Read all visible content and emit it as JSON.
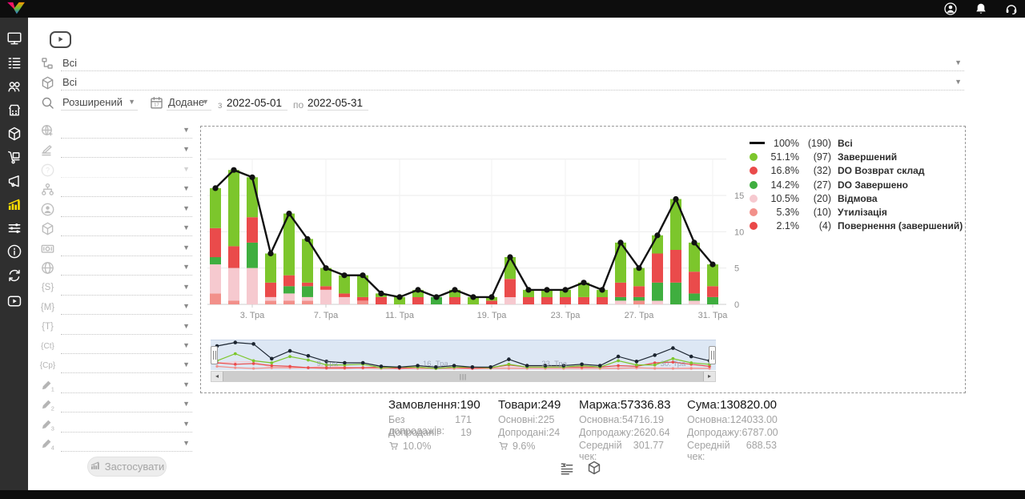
{
  "topbar": {
    "icons": [
      {
        "icon": "user",
        "name": "account"
      },
      {
        "icon": "bell",
        "name": "notifications"
      },
      {
        "icon": "headset",
        "name": "support"
      }
    ]
  },
  "sidebar": {
    "items": [
      {
        "icon": "monitor",
        "name": "dashboard"
      },
      {
        "icon": "list",
        "name": "orders"
      },
      {
        "icon": "users",
        "name": "customers"
      },
      {
        "icon": "store",
        "name": "warehouse"
      },
      {
        "icon": "cube",
        "name": "products"
      },
      {
        "icon": "trolley",
        "name": "shipping"
      },
      {
        "icon": "megaphone",
        "name": "marketing"
      },
      {
        "icon": "chartbars",
        "name": "statistics",
        "active": true
      },
      {
        "icon": "sliders",
        "name": "settings"
      },
      {
        "icon": "info",
        "name": "info"
      },
      {
        "icon": "sync",
        "name": "sync"
      },
      {
        "icon": "playbadge",
        "name": "video-help"
      }
    ],
    "active_color": "#ffe000",
    "icon_color": "#ffffff"
  },
  "filters": {
    "row1": {
      "icon": "tree",
      "value": "Всі"
    },
    "row2": {
      "icon": "cube",
      "value": "Всі"
    },
    "row3": {
      "search_mode": "Розширений",
      "date_field": "Додане",
      "from_label": "з",
      "date_from": "2022-05-01",
      "to_label": "по",
      "date_to": "2022-05-31"
    },
    "left_rows": [
      {
        "icon": "globepointer",
        "name": "region-filter"
      },
      {
        "icon": "layerspen",
        "name": "landing-filter"
      },
      {
        "icon": "question",
        "name": "unknown-filter",
        "disabled": true
      },
      {
        "icon": "sitemap",
        "name": "structure-filter"
      },
      {
        "icon": "personcircle",
        "name": "operator-filter"
      },
      {
        "icon": "cube",
        "name": "product-filter"
      },
      {
        "icon": "banknote",
        "name": "payment-filter"
      },
      {
        "icon": "globe",
        "name": "web-filter"
      },
      {
        "icon": "brackets",
        "text": "{S}",
        "name": "utm-source-filter"
      },
      {
        "icon": "brackets",
        "text": "{M}",
        "name": "utm-medium-filter"
      },
      {
        "icon": "brackets",
        "text": "{T}",
        "name": "utm-term-filter"
      },
      {
        "icon": "brackets",
        "text": "{Ct}",
        "name": "utm-content-filter"
      },
      {
        "icon": "brackets",
        "text": "{Cp}",
        "name": "utm-campaign-filter"
      },
      {
        "icon": "pencil",
        "num": "1",
        "name": "custom-field-1-filter"
      },
      {
        "icon": "pencil",
        "num": "2",
        "name": "custom-field-2-filter"
      },
      {
        "icon": "pencil",
        "num": "3",
        "name": "custom-field-3-filter"
      },
      {
        "icon": "pencil",
        "num": "4",
        "name": "custom-field-4-filter"
      }
    ],
    "apply_label": "Застосувати"
  },
  "chart_data": {
    "type": "bar",
    "subtype": "stacked-bars-with-total-line",
    "title": "",
    "xlabel": "",
    "ylabel": "",
    "ylim": [
      0,
      20
    ],
    "y_ticks": [
      0,
      5,
      10,
      15
    ],
    "grid": true,
    "legend_position": "top-right",
    "x_tick_labels": [
      {
        "bar_index": 2,
        "label": "3. Тра"
      },
      {
        "bar_index": 6,
        "label": "7. Тра"
      },
      {
        "bar_index": 10,
        "label": "11. Тра"
      },
      {
        "bar_index": 15,
        "label": "19. Тра"
      },
      {
        "bar_index": 19,
        "label": "23. Тра"
      },
      {
        "bar_index": 23,
        "label": "27. Тра"
      },
      {
        "bar_index": 27,
        "label": "31. Тра"
      }
    ],
    "legend": [
      {
        "swatch": "line",
        "pct": "100%",
        "count": "(190)",
        "label": "Всі",
        "color": "#111111"
      },
      {
        "swatch": "dot",
        "pct": "51.1%",
        "count": "(97)",
        "label": "Завершений",
        "color": "#7cc62c"
      },
      {
        "swatch": "dot",
        "pct": "16.8%",
        "count": "(32)",
        "label": "DO Возврат склад",
        "color": "#ea4b4b"
      },
      {
        "swatch": "dot",
        "pct": "14.2%",
        "count": "(27)",
        "label": "DO Завершено",
        "color": "#3fae3f"
      },
      {
        "swatch": "dot",
        "pct": "10.5%",
        "count": "(20)",
        "label": "Відмова",
        "color": "#f6c9cf"
      },
      {
        "swatch": "dot",
        "pct": "5.3%",
        "count": "(10)",
        "label": "Утилізація",
        "color": "#f2908a"
      },
      {
        "swatch": "dot",
        "pct": "2.1%",
        "count": "(4)",
        "label": "Повернення (завершений)",
        "color": "#ea4848"
      }
    ],
    "line_series": {
      "name": "Всі",
      "color": "#111111",
      "values": [
        16,
        18.5,
        17.5,
        7,
        12.5,
        9,
        5,
        4,
        4,
        1.5,
        1,
        2,
        1,
        2,
        1,
        1,
        6.5,
        2,
        2,
        2,
        3,
        2,
        8.5,
        5,
        9.5,
        14.5,
        8.5,
        5.5
      ]
    },
    "stack_order_bottom_to_top": [
      "utilization",
      "refusal",
      "do_completed",
      "do_return",
      "completed"
    ],
    "stacked_series": [
      {
        "key": "completed",
        "name": "Завершений",
        "color": "#7cc62c",
        "values": [
          5.5,
          10.5,
          5.5,
          4,
          8.5,
          6,
          2.5,
          2.5,
          3,
          0.5,
          1,
          1,
          0,
          1,
          1,
          0.5,
          3,
          1,
          1,
          1,
          2,
          1,
          5.5,
          2.5,
          2.5,
          7,
          4,
          3
        ]
      },
      {
        "key": "do_return",
        "name": "DO Возврат склад",
        "color": "#ea4b4b",
        "values": [
          4,
          3,
          3.5,
          2,
          1.5,
          0.5,
          0.5,
          0.5,
          0.5,
          1,
          0,
          1,
          0,
          1,
          0,
          0.5,
          2.5,
          1,
          1,
          1,
          1,
          1,
          2,
          1.5,
          4,
          4.5,
          3,
          1.5
        ]
      },
      {
        "key": "do_completed",
        "name": "DO Завершено",
        "color": "#3fae3f",
        "values": [
          1,
          0,
          3.5,
          0,
          1,
          1.5,
          0,
          0,
          0,
          0,
          0,
          0,
          1,
          0,
          0,
          0,
          0,
          0,
          0,
          0,
          0,
          0,
          0.5,
          0.5,
          2.5,
          3,
          1,
          1
        ]
      },
      {
        "key": "refusal",
        "name": "Відмова",
        "color": "#f6c9cf",
        "values": [
          4,
          4.5,
          5,
          0.5,
          1,
          0.5,
          2,
          1,
          0,
          0,
          0,
          0,
          0,
          0,
          0,
          0,
          1,
          0,
          0,
          0,
          0,
          0,
          0.5,
          0,
          0.5,
          0,
          0.5,
          0
        ]
      },
      {
        "key": "utilization",
        "name": "Утилізація",
        "color": "#f2908a",
        "values": [
          1.5,
          0.5,
          0,
          0.5,
          0.5,
          0.5,
          0,
          0,
          0.5,
          0,
          0,
          0,
          0,
          0,
          0,
          0,
          0,
          0,
          0,
          0,
          0,
          0,
          0,
          0.5,
          0,
          0,
          0,
          0
        ]
      }
    ],
    "navigator": {
      "labels": [
        {
          "label": "9. Тра",
          "pos": 0.21
        },
        {
          "label": "16. Тра",
          "pos": 0.42
        },
        {
          "label": "23. Тра",
          "pos": 0.655
        },
        {
          "label": "30. Тра",
          "pos": 0.89
        }
      ]
    }
  },
  "stats": [
    {
      "title": "Замовлення:",
      "value": "190",
      "rows": [
        {
          "label": "Без допродажів:",
          "value": "171"
        },
        {
          "label": "Допродані:",
          "value": "19"
        }
      ],
      "cart_pct": "10.0%"
    },
    {
      "title": "Товари:",
      "value": "249",
      "rows": [
        {
          "label": "Основні:",
          "value": "225"
        },
        {
          "label": "Допродані:",
          "value": "24"
        }
      ],
      "cart_pct": "9.6%"
    },
    {
      "title": "Маржа:",
      "value": "57336.83",
      "rows": [
        {
          "label": "Основна:",
          "value": "54716.19"
        },
        {
          "label": "Допродажу:",
          "value": "2620.64"
        },
        {
          "label": "Середній чек:",
          "value": "301.77"
        }
      ]
    },
    {
      "title": "Сума:",
      "value": "130820.00",
      "rows": [
        {
          "label": "Основна:",
          "value": "124033.00"
        },
        {
          "label": "Допродажу:",
          "value": "6787.00"
        },
        {
          "label": "Середній чек:",
          "value": "688.53"
        }
      ]
    }
  ],
  "view_toggles": [
    {
      "icon": "listtoggle",
      "name": "orders-view-toggle"
    },
    {
      "icon": "cube",
      "name": "products-view-toggle"
    }
  ]
}
